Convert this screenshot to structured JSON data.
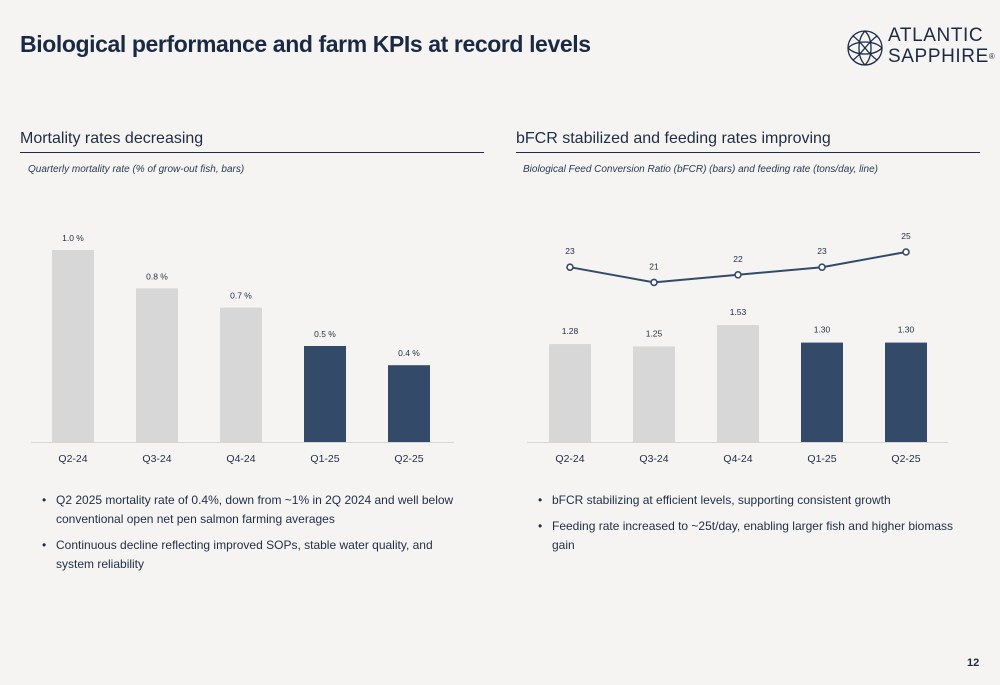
{
  "page": {
    "title": "Biological performance and farm KPIs at record levels",
    "page_number": "12"
  },
  "logo": {
    "line1": "ATLANTIC",
    "line2": "SAPPHIRE",
    "mark": "®"
  },
  "left": {
    "heading": "Mortality rates decreasing",
    "subtitle": "Quarterly mortality rate (% of grow-out fish, bars)",
    "bullets": [
      "Q2 2025 mortality rate of 0.4%, down from ~1% in 2Q 2024 and well below conventional open net pen salmon farming averages",
      "Continuous decline reflecting improved SOPs, stable water quality, and system reliability"
    ]
  },
  "right": {
    "heading": "bFCR stabilized and feeding rates improving",
    "subtitle": "Biological Feed Conversion Ratio (bFCR) (bars) and feeding rate (tons/day, line)",
    "bullets": [
      "bFCR stabilizing at efficient levels, supporting consistent growth",
      "Feeding rate increased to ~25t/day, enabling larger fish and higher biomass gain"
    ]
  },
  "colors": {
    "bar_light": "#d7d7d7",
    "bar_dark": "#344a69",
    "line": "#344a69",
    "axis": "#d6d6d6",
    "text": "#1f2d44"
  },
  "chart_data": [
    {
      "type": "bar",
      "title": "Quarterly mortality rate (% of grow-out fish, bars)",
      "categories": [
        "Q2-24",
        "Q3-24",
        "Q4-24",
        "Q1-25",
        "Q2-25"
      ],
      "values": [
        1.0,
        0.8,
        0.7,
        0.5,
        0.4
      ],
      "value_labels": [
        "1.0 %",
        "0.8 %",
        "0.7 %",
        "0.5 %",
        "0.4 %"
      ],
      "highlight": [
        false,
        false,
        false,
        true,
        true
      ],
      "ylim": [
        0,
        1.0
      ],
      "grid": false,
      "legend": "none"
    },
    {
      "type": "bar",
      "title": "Biological Feed Conversion Ratio (bFCR) (bars) and feeding rate (tons/day, line)",
      "categories": [
        "Q2-24",
        "Q3-24",
        "Q4-24",
        "Q1-25",
        "Q2-25"
      ],
      "series": [
        {
          "type": "bar",
          "values": [
            1.28,
            1.25,
            1.53,
            1.3,
            1.3
          ],
          "value_labels": [
            "1.28",
            "1.25",
            "1.53",
            "1.30",
            "1.30"
          ],
          "highlight": [
            false,
            false,
            false,
            true,
            true
          ],
          "ylim": [
            0,
            1.53
          ]
        },
        {
          "type": "line",
          "values": [
            23,
            21,
            22,
            23,
            25
          ],
          "value_labels": [
            "23",
            "21",
            "22",
            "23",
            "25"
          ],
          "ylim": [
            0,
            25
          ]
        }
      ],
      "grid": false,
      "legend": "none"
    }
  ]
}
